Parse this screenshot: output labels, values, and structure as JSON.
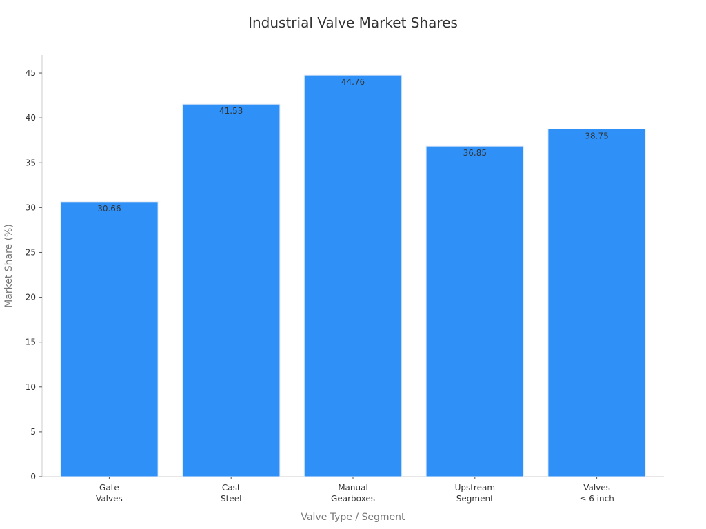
{
  "chart_data": {
    "type": "bar",
    "title": "Industrial Valve Market Shares",
    "xlabel": "Valve Type / Segment",
    "ylabel": "Market Share (%)",
    "categories": [
      [
        "Gate",
        "Valves"
      ],
      [
        "Cast",
        "Steel"
      ],
      [
        "Manual",
        "Gearboxes"
      ],
      [
        "Upstream",
        "Segment"
      ],
      [
        "Valves",
        "≤ 6 inch"
      ]
    ],
    "values": [
      30.66,
      41.53,
      44.76,
      36.85,
      38.75
    ],
    "value_labels": [
      "30.66",
      "41.53",
      "44.76",
      "36.85",
      "38.75"
    ],
    "ylim": [
      0,
      47
    ],
    "yticks": [
      0,
      5,
      10,
      15,
      20,
      25,
      30,
      35,
      40,
      45
    ],
    "grid": false,
    "legend": "none",
    "colors": {
      "bar": "#2f91f7",
      "bar_edge": "#e8eef6"
    }
  }
}
